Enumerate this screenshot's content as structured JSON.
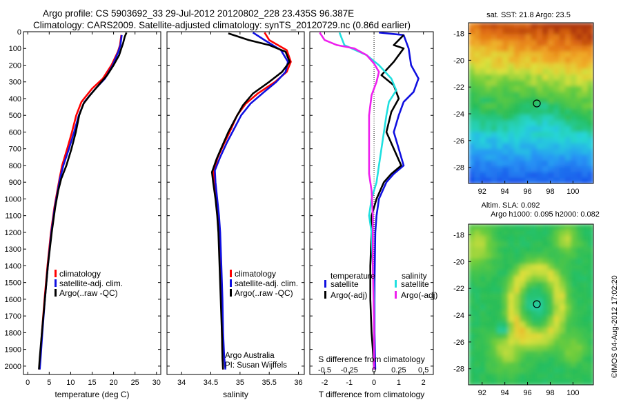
{
  "header": {
    "line1": "Argo profile: CS 5903692_33 29-Jul-2012 20120802_228 23.435S 96.387E",
    "line2": "Climatology: CARS2009. Satellite-adjusted climatology: synTS_20120729.nc (0.86d earlier)"
  },
  "colors": {
    "climatology": "#ff0000",
    "satellite": "#1010e0",
    "argo": "#000000",
    "satellite_s": "#20e0e0",
    "argo_s": "#ee20ee"
  },
  "chart_data": [
    {
      "id": "temperature",
      "type": "line",
      "xlabel": "temperature (deg C)",
      "ylabel": "",
      "xlim": [
        -1,
        31
      ],
      "ylim": [
        2050,
        0
      ],
      "xticks": [
        0,
        5,
        10,
        15,
        20,
        25,
        30
      ],
      "yticks": [
        0,
        100,
        200,
        300,
        400,
        500,
        600,
        700,
        800,
        900,
        1000,
        1100,
        1200,
        1300,
        1400,
        1500,
        1600,
        1700,
        1800,
        1900,
        2000
      ],
      "legend": {
        "placement": "lower-left",
        "entries": [
          "climatology",
          "satellite-adj. clim.",
          "Argo(..raw -QC)"
        ]
      },
      "series": [
        {
          "name": "climatology",
          "color_key": "climatology",
          "points": [
            [
              21.8,
              20
            ],
            [
              21.5,
              80
            ],
            [
              21.0,
              120
            ],
            [
              19.5,
              200
            ],
            [
              17.5,
              280
            ],
            [
              15.0,
              340
            ],
            [
              12.5,
              420
            ],
            [
              11.3,
              500
            ],
            [
              10.3,
              600
            ],
            [
              9.2,
              700
            ],
            [
              8.0,
              800
            ],
            [
              7.4,
              880
            ],
            [
              6.9,
              950
            ],
            [
              6.2,
              1050
            ],
            [
              5.4,
              1200
            ],
            [
              4.6,
              1400
            ],
            [
              3.9,
              1600
            ],
            [
              3.3,
              1800
            ],
            [
              2.9,
              1950
            ],
            [
              2.7,
              2020
            ]
          ]
        },
        {
          "name": "satellite-adj. clim.",
          "color_key": "satellite",
          "points": [
            [
              21.9,
              20
            ],
            [
              21.6,
              80
            ],
            [
              21.1,
              120
            ],
            [
              19.8,
              200
            ],
            [
              18.0,
              280
            ],
            [
              15.8,
              340
            ],
            [
              13.2,
              420
            ],
            [
              11.9,
              500
            ],
            [
              10.8,
              600
            ],
            [
              9.6,
              700
            ],
            [
              8.3,
              800
            ],
            [
              7.5,
              880
            ],
            [
              7.0,
              950
            ],
            [
              6.3,
              1050
            ],
            [
              5.5,
              1200
            ],
            [
              4.7,
              1400
            ],
            [
              4.0,
              1600
            ],
            [
              3.4,
              1800
            ],
            [
              3.0,
              1950
            ],
            [
              2.8,
              2020
            ]
          ]
        },
        {
          "name": "Argo(..raw -QC)",
          "color_key": "argo",
          "points": [
            [
              23.0,
              5
            ],
            [
              22.6,
              30
            ],
            [
              22.2,
              70
            ],
            [
              21.8,
              100
            ],
            [
              21.3,
              140
            ],
            [
              20.0,
              200
            ],
            [
              18.5,
              260
            ],
            [
              16.5,
              320
            ],
            [
              14.5,
              380
            ],
            [
              13.0,
              430
            ],
            [
              12.0,
              500
            ],
            [
              11.2,
              600
            ],
            [
              10.2,
              700
            ],
            [
              9.0,
              800
            ],
            [
              7.8,
              880
            ],
            [
              7.1,
              950
            ],
            [
              6.4,
              1050
            ],
            [
              5.6,
              1200
            ],
            [
              4.7,
              1400
            ],
            [
              4.0,
              1600
            ],
            [
              3.3,
              1800
            ],
            [
              2.8,
              1950
            ],
            [
              2.6,
              2020
            ]
          ]
        }
      ]
    },
    {
      "id": "salinity",
      "type": "line",
      "xlabel": "salinity",
      "ylabel": "",
      "xlim": [
        33.75,
        36.1
      ],
      "ylim": [
        2050,
        0
      ],
      "xticks": [
        34,
        34.5,
        35,
        35.5,
        36
      ],
      "yticks": [
        0,
        100,
        200,
        300,
        400,
        500,
        600,
        700,
        800,
        900,
        1000,
        1100,
        1200,
        1300,
        1400,
        1500,
        1600,
        1700,
        1800,
        1900,
        2000
      ],
      "legend": {
        "placement": "lower-right",
        "entries": [
          "climatology",
          "satellite-adj. clim.",
          "Argo(..raw -QC)"
        ]
      },
      "annotations": [
        "Argo Australia",
        "PI: Susan Wijffels"
      ],
      "series": [
        {
          "name": "climatology",
          "color_key": "climatology",
          "points": [
            [
              35.42,
              5
            ],
            [
              35.5,
              50
            ],
            [
              35.8,
              110
            ],
            [
              35.87,
              180
            ],
            [
              35.8,
              240
            ],
            [
              35.6,
              300
            ],
            [
              35.3,
              370
            ],
            [
              35.1,
              430
            ],
            [
              34.95,
              500
            ],
            [
              34.85,
              580
            ],
            [
              34.74,
              660
            ],
            [
              34.62,
              750
            ],
            [
              34.55,
              830
            ],
            [
              34.56,
              900
            ],
            [
              34.6,
              1000
            ],
            [
              34.63,
              1100
            ],
            [
              34.65,
              1200
            ],
            [
              34.66,
              1400
            ],
            [
              34.68,
              1600
            ],
            [
              34.69,
              1800
            ],
            [
              34.7,
              1950
            ],
            [
              34.71,
              2020
            ]
          ]
        },
        {
          "name": "satellite-adj. clim.",
          "color_key": "satellite",
          "points": [
            [
              35.22,
              5
            ],
            [
              35.42,
              50
            ],
            [
              35.7,
              110
            ],
            [
              35.82,
              180
            ],
            [
              35.78,
              240
            ],
            [
              35.62,
              300
            ],
            [
              35.38,
              370
            ],
            [
              35.18,
              430
            ],
            [
              35.02,
              500
            ],
            [
              34.9,
              580
            ],
            [
              34.78,
              660
            ],
            [
              34.66,
              750
            ],
            [
              34.57,
              830
            ],
            [
              34.58,
              900
            ],
            [
              34.61,
              1000
            ],
            [
              34.64,
              1100
            ],
            [
              34.66,
              1200
            ],
            [
              34.68,
              1400
            ],
            [
              34.7,
              1600
            ],
            [
              34.71,
              1800
            ],
            [
              34.73,
              1950
            ],
            [
              34.75,
              2020
            ]
          ]
        },
        {
          "name": "Argo(..raw -QC)",
          "color_key": "argo",
          "points": [
            [
              34.8,
              10
            ],
            [
              35.15,
              50
            ],
            [
              35.5,
              80
            ],
            [
              35.78,
              120
            ],
            [
              35.85,
              180
            ],
            [
              35.72,
              240
            ],
            [
              35.5,
              300
            ],
            [
              35.22,
              370
            ],
            [
              35.05,
              440
            ],
            [
              34.92,
              520
            ],
            [
              34.8,
              600
            ],
            [
              34.7,
              680
            ],
            [
              34.6,
              760
            ],
            [
              34.52,
              840
            ],
            [
              34.54,
              900
            ],
            [
              34.58,
              1000
            ],
            [
              34.61,
              1100
            ],
            [
              34.63,
              1200
            ],
            [
              34.65,
              1400
            ],
            [
              34.67,
              1600
            ],
            [
              34.69,
              1800
            ],
            [
              34.7,
              1950
            ],
            [
              34.71,
              2020
            ]
          ]
        }
      ]
    },
    {
      "id": "difference",
      "type": "line",
      "xlabel": "T difference from climatology",
      "x2label": "S difference from climatology",
      "ylabel": "",
      "xlim": [
        -2.6,
        2.4
      ],
      "ylim": [
        2050,
        0
      ],
      "xticks": [
        -2,
        -1,
        0,
        1,
        2
      ],
      "x2ticks": [
        "-0.5",
        "-0.25",
        "0",
        "0.25",
        "0.5"
      ],
      "x2tick_positions": [
        -2,
        -1,
        0,
        1,
        2
      ],
      "yticks": [
        0,
        100,
        200,
        300,
        400,
        500,
        600,
        700,
        800,
        900,
        1000,
        1100,
        1200,
        1300,
        1400,
        1500,
        1600,
        1700,
        1800,
        1900,
        2000
      ],
      "legend": {
        "placement": "lower-center",
        "headers": [
          "temperature",
          "salinity"
        ],
        "entries": [
          "satellite",
          "Argo(-adj)",
          "satellite",
          "Argo(-adj)"
        ]
      },
      "series": [
        {
          "name": "satellite",
          "group": "temperature",
          "color_key": "satellite",
          "points": [
            [
              0.2,
              5
            ],
            [
              1.2,
              20
            ],
            [
              1.4,
              100
            ],
            [
              1.5,
              200
            ],
            [
              1.8,
              280
            ],
            [
              1.6,
              360
            ],
            [
              1.2,
              420
            ],
            [
              1.0,
              500
            ],
            [
              0.8,
              600
            ],
            [
              1.0,
              700
            ],
            [
              1.2,
              800
            ],
            [
              0.8,
              850
            ],
            [
              0.5,
              900
            ],
            [
              0.2,
              1000
            ],
            [
              0.1,
              1100
            ],
            [
              0.05,
              1200
            ],
            [
              0.02,
              1500
            ],
            [
              0.02,
              1800
            ],
            [
              0.05,
              2020
            ]
          ]
        },
        {
          "name": "Argo(-adj)",
          "group": "temperature",
          "color_key": "argo",
          "points": [
            [
              1.2,
              20
            ],
            [
              0.8,
              80
            ],
            [
              1.2,
              100
            ],
            [
              0.8,
              180
            ],
            [
              0.3,
              260
            ],
            [
              0.8,
              320
            ],
            [
              1.0,
              400
            ],
            [
              0.7,
              480
            ],
            [
              0.5,
              600
            ],
            [
              0.8,
              700
            ],
            [
              1.1,
              800
            ],
            [
              0.7,
              850
            ],
            [
              0.4,
              900
            ],
            [
              0.1,
              1000
            ],
            [
              -0.1,
              1100
            ],
            [
              -0.1,
              1200
            ],
            [
              -0.15,
              1400
            ],
            [
              -0.15,
              1600
            ],
            [
              -0.1,
              1800
            ],
            [
              -0.05,
              1900
            ],
            [
              0.0,
              2020
            ]
          ]
        },
        {
          "name": "satellite",
          "group": "salinity",
          "color_key": "satellite_s",
          "points": [
            [
              -1.4,
              5
            ],
            [
              -1.2,
              80
            ],
            [
              -0.3,
              140
            ],
            [
              0.2,
              200
            ],
            [
              0.7,
              280
            ],
            [
              0.9,
              350
            ],
            [
              0.6,
              420
            ],
            [
              0.5,
              500
            ],
            [
              0.4,
              600
            ],
            [
              0.3,
              700
            ],
            [
              0.2,
              800
            ],
            [
              0.1,
              900
            ],
            [
              -0.1,
              1000
            ],
            [
              -0.2,
              1100
            ],
            [
              -0.1,
              1200
            ],
            [
              -0.05,
              1400
            ],
            [
              0.0,
              1600
            ],
            [
              0.0,
              1800
            ],
            [
              0.0,
              2020
            ]
          ]
        },
        {
          "name": "Argo(-adj)",
          "group": "salinity",
          "color_key": "argo_s",
          "points": [
            [
              -2.2,
              5
            ],
            [
              -2.0,
              50
            ],
            [
              -1.5,
              80
            ],
            [
              -0.8,
              100
            ],
            [
              -0.3,
              140
            ],
            [
              0.0,
              190
            ],
            [
              0.2,
              240
            ],
            [
              0.1,
              300
            ],
            [
              -0.1,
              380
            ],
            [
              -0.2,
              500
            ],
            [
              -0.2,
              600
            ],
            [
              -0.2,
              700
            ],
            [
              -0.2,
              800
            ],
            [
              -0.2,
              850
            ],
            [
              -0.1,
              950
            ],
            [
              -0.05,
              1100
            ],
            [
              -0.05,
              1400
            ],
            [
              -0.02,
              1600
            ],
            [
              0.0,
              1800
            ],
            [
              0.0,
              2020
            ]
          ]
        }
      ]
    },
    {
      "id": "sst-map",
      "type": "heatmap",
      "title": "sat. SST: 21.8  Argo: 23.5",
      "xlim": [
        90.8,
        101.8
      ],
      "ylim": [
        -29.2,
        -17.2
      ],
      "xticks": [
        92,
        94,
        96,
        98,
        100
      ],
      "yticks": [
        -18,
        -20,
        -22,
        -24,
        -26,
        -28
      ],
      "marker": {
        "lon": 96.387,
        "lat": -23.435
      }
    },
    {
      "id": "sla-map",
      "type": "heatmap",
      "title": "Altim. SLA: 0.092",
      "subtitle": "Argo h1000: 0.095 h2000: 0.082",
      "xlim": [
        90.8,
        101.8
      ],
      "ylim": [
        -29.2,
        -17.2
      ],
      "xticks": [
        92,
        94,
        96,
        98,
        100
      ],
      "yticks": [
        -18,
        -20,
        -22,
        -24,
        -26,
        -28
      ],
      "marker": {
        "lon": 96.387,
        "lat": -23.435
      }
    }
  ],
  "watermark": "©IMOS 04-Aug-2012 17:02:20"
}
